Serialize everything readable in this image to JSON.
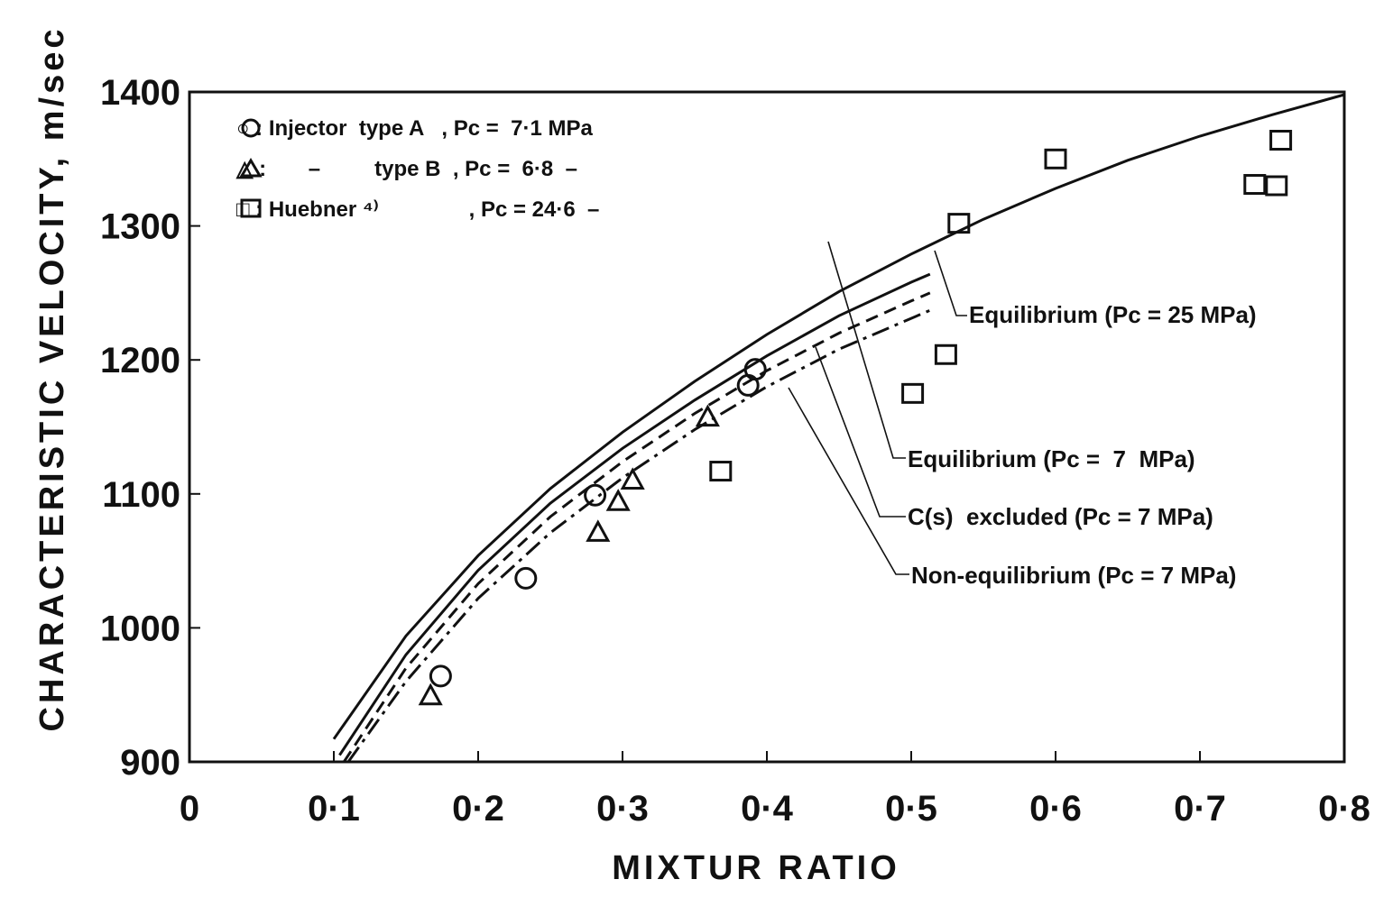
{
  "chart_data": {
    "type": "scatter",
    "xlabel": "MIXTUR RATIO",
    "ylabel": "CHARACTERISTIC VELOCITY, m/sec",
    "xlim": [
      0,
      0.8
    ],
    "ylim": [
      900,
      1400
    ],
    "x_ticks": [
      "0",
      "0·1",
      "0·2",
      "0·3",
      "0·4",
      "0·5",
      "0·6",
      "0·7",
      "0·8"
    ],
    "x_tick_values": [
      0,
      0.1,
      0.2,
      0.3,
      0.4,
      0.5,
      0.6,
      0.7,
      0.8
    ],
    "y_ticks": [
      "900",
      "1000",
      "1100",
      "1200",
      "1300",
      "1400"
    ],
    "y_tick_values": [
      900,
      1000,
      1100,
      1200,
      1300,
      1400
    ],
    "grid": false,
    "legend_position": "top-left",
    "series": [
      {
        "name": "Injector type A",
        "legend_label": "○ : Injector  type A   , Pc =  7·1 MPa",
        "marker": "circle",
        "points": [
          [
            0.174,
            964
          ],
          [
            0.233,
            1037
          ],
          [
            0.281,
            1099
          ],
          [
            0.387,
            1181
          ],
          [
            0.392,
            1193
          ]
        ]
      },
      {
        "name": "type B",
        "legend_label": "△ :       –         type B  , Pc =  6·8  –",
        "marker": "triangle",
        "points": [
          [
            0.167,
            950
          ],
          [
            0.283,
            1072
          ],
          [
            0.297,
            1095
          ],
          [
            0.307,
            1111
          ],
          [
            0.359,
            1158
          ]
        ]
      },
      {
        "name": "Huebner",
        "legend_label": "□ : Huebner ⁴⁾               , Pc = 24·6  –",
        "marker": "square",
        "points": [
          [
            0.368,
            1117
          ],
          [
            0.501,
            1175
          ],
          [
            0.524,
            1204
          ],
          [
            0.533,
            1302
          ],
          [
            0.6,
            1350
          ],
          [
            0.738,
            1331
          ],
          [
            0.753,
            1330
          ],
          [
            0.756,
            1364
          ]
        ]
      }
    ],
    "curves": [
      {
        "name": "Equilibrium (Pc = 25 MPa)",
        "style": "solid",
        "points": [
          [
            0.1,
            917
          ],
          [
            0.15,
            994
          ],
          [
            0.2,
            1054
          ],
          [
            0.25,
            1104
          ],
          [
            0.3,
            1146
          ],
          [
            0.35,
            1184
          ],
          [
            0.4,
            1219
          ],
          [
            0.45,
            1251
          ],
          [
            0.5,
            1279
          ],
          [
            0.55,
            1305
          ],
          [
            0.6,
            1328
          ],
          [
            0.65,
            1349
          ],
          [
            0.7,
            1367
          ],
          [
            0.75,
            1383
          ],
          [
            0.8,
            1398
          ]
        ]
      },
      {
        "name": "Equilibrium (Pc = 7 MPa)",
        "style": "solid",
        "points": [
          [
            0.104,
            905
          ],
          [
            0.15,
            980
          ],
          [
            0.2,
            1043
          ],
          [
            0.25,
            1093
          ],
          [
            0.3,
            1134
          ],
          [
            0.35,
            1170
          ],
          [
            0.4,
            1203
          ],
          [
            0.45,
            1233
          ],
          [
            0.5,
            1258
          ],
          [
            0.513,
            1264
          ]
        ]
      },
      {
        "name": "C(s) excluded (Pc = 7 MPa)",
        "style": "dashed",
        "points": [
          [
            0.107,
            900
          ],
          [
            0.15,
            970
          ],
          [
            0.2,
            1033
          ],
          [
            0.25,
            1083
          ],
          [
            0.3,
            1124
          ],
          [
            0.35,
            1160
          ],
          [
            0.4,
            1192
          ],
          [
            0.45,
            1220
          ],
          [
            0.5,
            1244
          ],
          [
            0.513,
            1250
          ]
        ]
      },
      {
        "name": "Non-equilibrium (Pc = 7 MPa)",
        "style": "dashdot",
        "points": [
          [
            0.11,
            900
          ],
          [
            0.15,
            960
          ],
          [
            0.2,
            1022
          ],
          [
            0.25,
            1071
          ],
          [
            0.3,
            1112
          ],
          [
            0.35,
            1148
          ],
          [
            0.4,
            1180
          ],
          [
            0.45,
            1208
          ],
          [
            0.5,
            1231
          ],
          [
            0.513,
            1237
          ]
        ]
      }
    ],
    "legend": [
      "○ : Injector  type A   , Pc =  7·1 MPa",
      "△ :       –         type B  , Pc =  6·8  –",
      "□ : Huebner ⁴⁾               , Pc = 24·6  –"
    ],
    "annotations": [
      "Equilibrium (Pc = 25 MPa)",
      "Equilibrium (Pc =  7  MPa)",
      "C(s)  excluded (Pc = 7 MPa)",
      "Non-equilibrium (Pc = 7 MPa)"
    ]
  }
}
